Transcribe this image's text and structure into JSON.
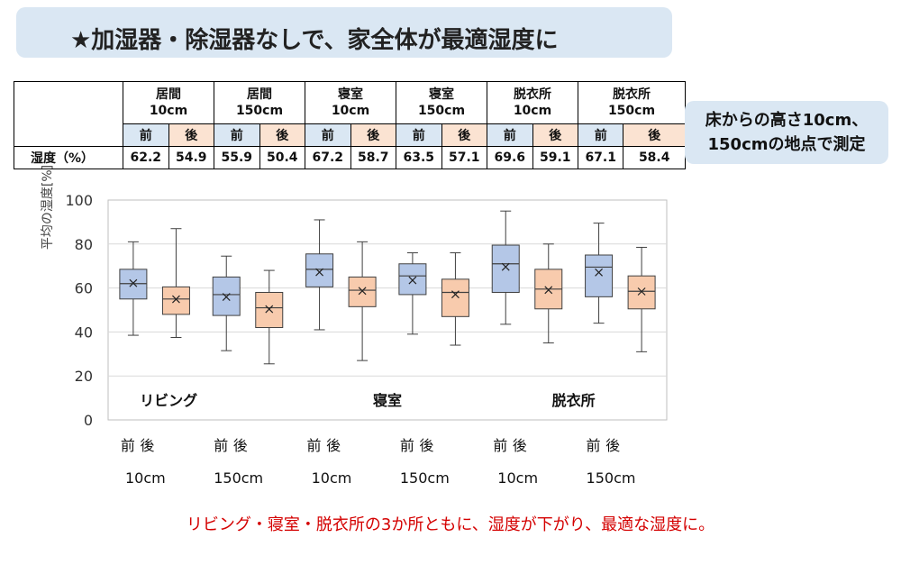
{
  "header": {
    "title": "★加湿器・除湿器なしで、家全体が最適湿度に"
  },
  "note": {
    "line1": "床からの高さ10cm、",
    "line2": "150cmの地点で測定"
  },
  "table": {
    "groups": [
      {
        "room": "居間",
        "height": "10cm"
      },
      {
        "room": "居間",
        "height": "150cm"
      },
      {
        "room": "寝室",
        "height": "10cm"
      },
      {
        "room": "寝室",
        "height": "150cm"
      },
      {
        "room": "脱衣所",
        "height": "10cm"
      },
      {
        "room": "脱衣所",
        "height": "150cm"
      }
    ],
    "pre_label": "前",
    "post_label": "後",
    "row_label": "湿度（%）",
    "values": [
      "62.2",
      "54.9",
      "55.9",
      "50.4",
      "67.2",
      "58.7",
      "63.5",
      "57.1",
      "69.6",
      "59.1",
      "67.1",
      "58.4"
    ]
  },
  "chart_data": {
    "type": "box",
    "ylabel": "平均の湿度[%]",
    "ylim": [
      0,
      100
    ],
    "yticks": [
      0,
      20,
      40,
      60,
      80,
      100
    ],
    "grid": true,
    "room_labels": [
      "リビング",
      "寝室",
      "脱衣所"
    ],
    "pre_label": "前",
    "post_label": "後",
    "height_labels": [
      "10cm",
      "150cm",
      "10cm",
      "150cm",
      "10cm",
      "150cm"
    ],
    "colors": {
      "pre": "#b4c7e7",
      "post": "#f8cbad"
    },
    "boxes": [
      {
        "group": "10cm",
        "series": "前",
        "min": 38.5,
        "q1": 55,
        "median": 62,
        "q3": 68.5,
        "max": 81,
        "mean": 62.2
      },
      {
        "group": "10cm",
        "series": "後",
        "min": 37.5,
        "q1": 48,
        "median": 55,
        "q3": 60.5,
        "max": 87,
        "mean": 54.9
      },
      {
        "group": "150cm",
        "series": "前",
        "min": 31.5,
        "q1": 47.5,
        "median": 57,
        "q3": 65,
        "max": 74.5,
        "mean": 55.9
      },
      {
        "group": "150cm",
        "series": "後",
        "min": 25.5,
        "q1": 42,
        "median": 51,
        "q3": 58,
        "max": 68,
        "mean": 50.4
      },
      {
        "group": "10cm",
        "series": "前",
        "min": 41,
        "q1": 60.5,
        "median": 68.5,
        "q3": 75.5,
        "max": 91,
        "mean": 67.2
      },
      {
        "group": "10cm",
        "series": "後",
        "min": 27,
        "q1": 51.5,
        "median": 59,
        "q3": 65,
        "max": 81,
        "mean": 58.7
      },
      {
        "group": "150cm",
        "series": "前",
        "min": 39,
        "q1": 57,
        "median": 65.5,
        "q3": 71,
        "max": 76,
        "mean": 63.5
      },
      {
        "group": "150cm",
        "series": "後",
        "min": 34,
        "q1": 47,
        "median": 58,
        "q3": 64,
        "max": 76,
        "mean": 57.1
      },
      {
        "group": "10cm",
        "series": "前",
        "min": 43.5,
        "q1": 58,
        "median": 71,
        "q3": 79.5,
        "max": 95,
        "mean": 69.6
      },
      {
        "group": "10cm",
        "series": "後",
        "min": 35,
        "q1": 50.5,
        "median": 59.5,
        "q3": 68.5,
        "max": 80,
        "mean": 59.1
      },
      {
        "group": "150cm",
        "series": "前",
        "min": 44,
        "q1": 56,
        "median": 69.5,
        "q3": 75,
        "max": 89.5,
        "mean": 67.1
      },
      {
        "group": "150cm",
        "series": "後",
        "min": 31,
        "q1": 50.5,
        "median": 58.5,
        "q3": 65.5,
        "max": 78.5,
        "mean": 58.4
      }
    ]
  },
  "footer": {
    "text": "リビング・寝室・脱衣所の3か所ともに、湿度が下がり、最適な湿度に。"
  }
}
